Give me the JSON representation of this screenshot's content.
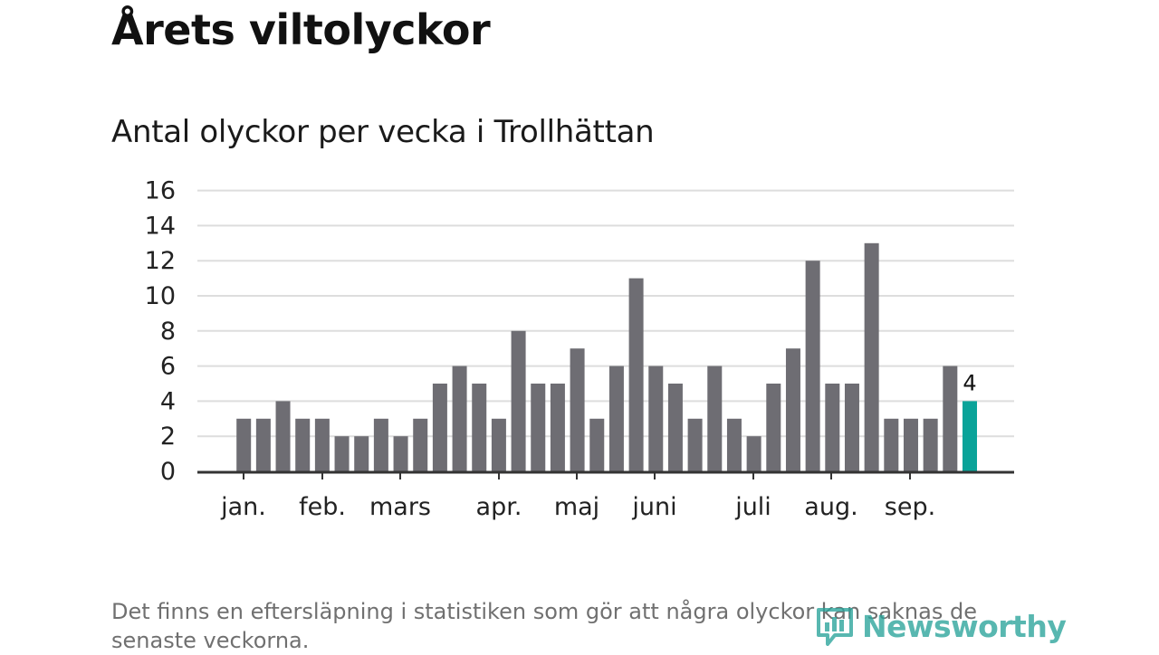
{
  "headline": "Årets viltolyckor",
  "subtitle": "Antal olyckor per vecka i Trollhättan",
  "note": "Det finns en eftersläpning i statistiken som gör att några olyckor kan saknas de senaste veckorna.",
  "brand": {
    "name": "Newsworthy",
    "icon": "bar-chart-speech-bubble-icon"
  },
  "colors": {
    "bar": "#6e6d73",
    "highlight": "#0aa399",
    "grid": "#dddddd",
    "axis": "#333333",
    "brand": "#2aa39a"
  },
  "chart_data": {
    "type": "bar",
    "title": "Antal olyckor per vecka i Trollhättan",
    "xlabel": "",
    "ylabel": "",
    "ylim": [
      0,
      16
    ],
    "yticks": [
      0,
      2,
      4,
      6,
      8,
      10,
      12,
      14,
      16
    ],
    "grid": true,
    "month_labels": [
      "jan.",
      "feb.",
      "mars",
      "apr.",
      "maj",
      "juni",
      "juli",
      "aug.",
      "sep."
    ],
    "values": [
      3,
      3,
      4,
      3,
      3,
      2,
      2,
      3,
      2,
      3,
      5,
      6,
      5,
      3,
      8,
      5,
      5,
      7,
      3,
      6,
      11,
      6,
      5,
      3,
      6,
      3,
      2,
      5,
      7,
      12,
      5,
      5,
      13,
      3,
      3,
      3,
      6,
      4
    ],
    "highlight_last": true,
    "annotations": [
      {
        "label": "4"
      }
    ]
  }
}
